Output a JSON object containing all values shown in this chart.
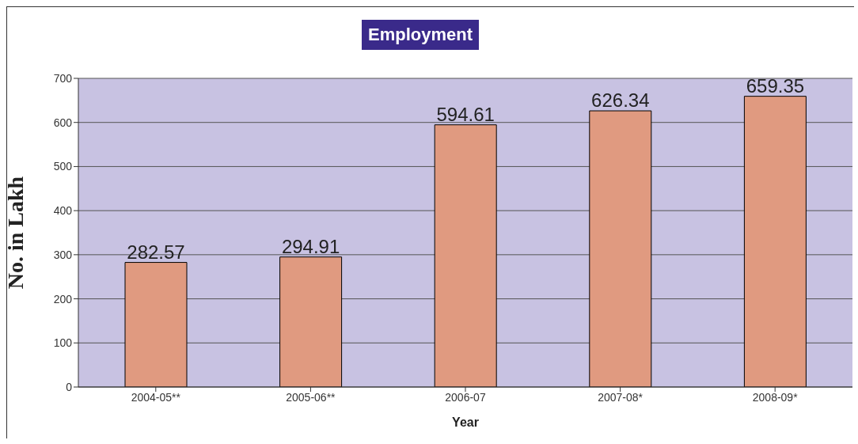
{
  "chart_data": {
    "type": "bar",
    "title": "Employment",
    "xlabel": "Year",
    "ylabel": "No. in Lakh",
    "categories": [
      "2004-05**",
      "2005-06**",
      "2006-07",
      "2007-08*",
      "2008-09*"
    ],
    "values": [
      282.57,
      294.91,
      594.61,
      626.34,
      659.35
    ],
    "color": "#e09a80",
    "ylim": [
      0,
      700
    ],
    "yticks": [
      0,
      100,
      200,
      300,
      400,
      500,
      600,
      700
    ],
    "grid": "y",
    "data_labels": true
  }
}
